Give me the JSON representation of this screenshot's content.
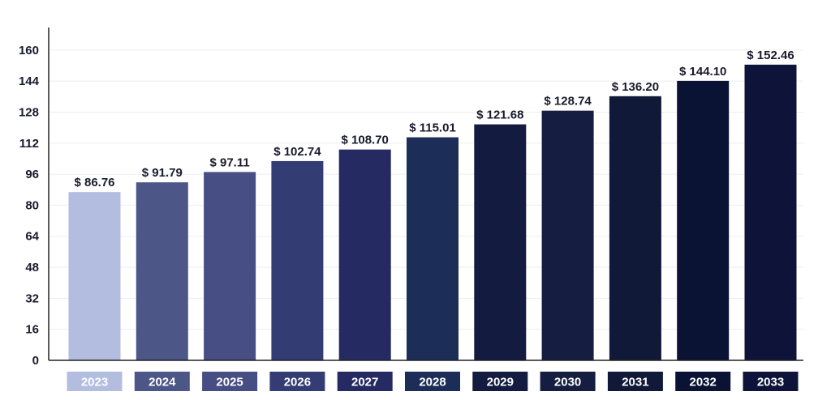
{
  "chart_data": {
    "type": "bar",
    "title": "",
    "xlabel": "",
    "ylabel": "",
    "categories": [
      "2023",
      "2024",
      "2025",
      "2026",
      "2027",
      "2028",
      "2029",
      "2030",
      "2031",
      "2032",
      "2033"
    ],
    "values": [
      86.76,
      91.79,
      97.11,
      102.74,
      108.7,
      115.01,
      121.68,
      128.74,
      136.2,
      144.1,
      152.46
    ],
    "value_labels": [
      "$ 86.76",
      "$ 91.79",
      "$ 97.11",
      "$ 102.74",
      "$ 108.70",
      "$ 115.01",
      "$ 121.68",
      "$ 128.74",
      "$ 136.20",
      "$ 144.10",
      "$ 152.46"
    ],
    "colors": [
      "#b3bde0",
      "#4d5787",
      "#474e84",
      "#333c73",
      "#262a63",
      "#1c2e58",
      "#131b40",
      "#151d40",
      "#111938",
      "#0b1334",
      "#0e1439"
    ],
    "y_ticks": [
      0,
      16,
      32,
      48,
      64,
      80,
      96,
      112,
      128,
      144,
      160
    ],
    "ylim": [
      0,
      166
    ],
    "grid": true,
    "legend": "none"
  }
}
